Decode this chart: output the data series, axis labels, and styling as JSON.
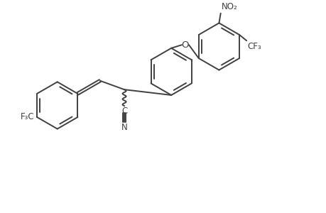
{
  "bg_color": "#ffffff",
  "line_color": "#404040",
  "line_width": 1.4,
  "font_size": 8.5,
  "figsize": [
    4.6,
    3.0
  ],
  "dpi": 100,
  "xlim": [
    -1.0,
    8.5
  ],
  "ylim": [
    -1.5,
    5.0
  ]
}
